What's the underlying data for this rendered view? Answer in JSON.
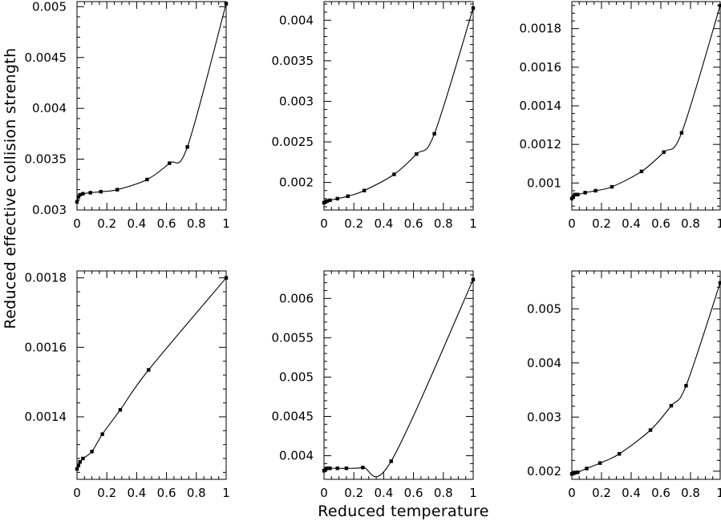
{
  "figure": {
    "ylabel": "Reduced effective collision strength",
    "xlabel": "Reduced temperature"
  },
  "chart_data": [
    {
      "type": "line",
      "xlim": [
        0,
        1
      ],
      "ylim": [
        0.003,
        0.00505
      ],
      "xticks": [
        "0",
        "0.2",
        "0.4",
        "0.6",
        "0.8",
        "1"
      ],
      "yticks": [
        "0.003",
        "0.0035",
        "0.004",
        "0.0045",
        "0.005"
      ],
      "points": {
        "x": [
          0,
          0.01,
          0.02,
          0.04,
          0.09,
          0.16,
          0.27,
          0.47,
          0.62,
          0.74,
          1.0
        ],
        "y": [
          0.00308,
          0.00313,
          0.00315,
          0.00316,
          0.00317,
          0.00318,
          0.0032,
          0.0033,
          0.00346,
          0.00362,
          0.00503
        ]
      }
    },
    {
      "type": "line",
      "xlim": [
        0,
        1
      ],
      "ylim": [
        0.00166,
        0.00423
      ],
      "xticks": [
        "0",
        "0.2",
        "0.4",
        "0.6",
        "0.8",
        "1"
      ],
      "yticks": [
        "0.002",
        "0.0025",
        "0.003",
        "0.0035",
        "0.004"
      ],
      "points": {
        "x": [
          0,
          0.01,
          0.02,
          0.04,
          0.09,
          0.16,
          0.27,
          0.47,
          0.62,
          0.74,
          1.0
        ],
        "y": [
          0.00175,
          0.00176,
          0.00177,
          0.00178,
          0.0018,
          0.00183,
          0.0019,
          0.0021,
          0.00235,
          0.0026,
          0.00415
        ]
      }
    },
    {
      "type": "line",
      "xlim": [
        0,
        1
      ],
      "ylim": [
        0.00086,
        0.00194
      ],
      "xticks": [
        "0",
        "0.2",
        "0.4",
        "0.6",
        "0.8",
        "1"
      ],
      "yticks": [
        "0.001",
        "0.0012",
        "0.0014",
        "0.0016",
        "0.0018"
      ],
      "points": {
        "x": [
          0,
          0.01,
          0.02,
          0.04,
          0.09,
          0.16,
          0.27,
          0.47,
          0.62,
          0.74,
          1.0
        ],
        "y": [
          0.00092,
          0.00093,
          0.00094,
          0.00094,
          0.00095,
          0.00096,
          0.00098,
          0.00106,
          0.00116,
          0.00126,
          0.00192
        ]
      }
    },
    {
      "type": "line",
      "xlim": [
        0,
        1
      ],
      "ylim": [
        0.00122,
        0.00182
      ],
      "xticks": [
        "0",
        "0.2",
        "0.4",
        "0.6",
        "0.8",
        "1"
      ],
      "yticks": [
        "0.0014",
        "0.0016",
        "0.0018"
      ],
      "points": {
        "x": [
          0,
          0.01,
          0.02,
          0.04,
          0.1,
          0.17,
          0.29,
          0.48,
          1.0
        ],
        "y": [
          0.00125,
          0.00126,
          0.00127,
          0.00128,
          0.0013,
          0.00135,
          0.00142,
          0.001535,
          0.0018
        ]
      }
    },
    {
      "type": "line",
      "xlim": [
        0,
        1
      ],
      "ylim": [
        0.0037,
        0.00635
      ],
      "xticks": [
        "0",
        "0.2",
        "0.4",
        "0.6",
        "0.8",
        "1"
      ],
      "yticks": [
        "0.004",
        "0.0045",
        "0.005",
        "0.0055",
        "0.006"
      ],
      "points": {
        "x": [
          0,
          0.01,
          0.02,
          0.04,
          0.09,
          0.15,
          0.26,
          0.45,
          1.0
        ],
        "y": [
          0.00381,
          0.00383,
          0.00384,
          0.00384,
          0.00384,
          0.00384,
          0.00385,
          0.00393,
          0.00624
        ]
      }
    },
    {
      "type": "line",
      "xlim": [
        0,
        1
      ],
      "ylim": [
        0.00185,
        0.0057
      ],
      "xticks": [
        "0",
        "0.2",
        "0.4",
        "0.6",
        "0.8",
        "1"
      ],
      "yticks": [
        "0.002",
        "0.003",
        "0.004",
        "0.005"
      ],
      "points": {
        "x": [
          0,
          0.01,
          0.02,
          0.04,
          0.1,
          0.19,
          0.32,
          0.53,
          0.67,
          0.77,
          1.0
        ],
        "y": [
          0.00195,
          0.00196,
          0.00197,
          0.00198,
          0.00205,
          0.00215,
          0.00232,
          0.00276,
          0.00321,
          0.00358,
          0.00548
        ]
      }
    }
  ]
}
